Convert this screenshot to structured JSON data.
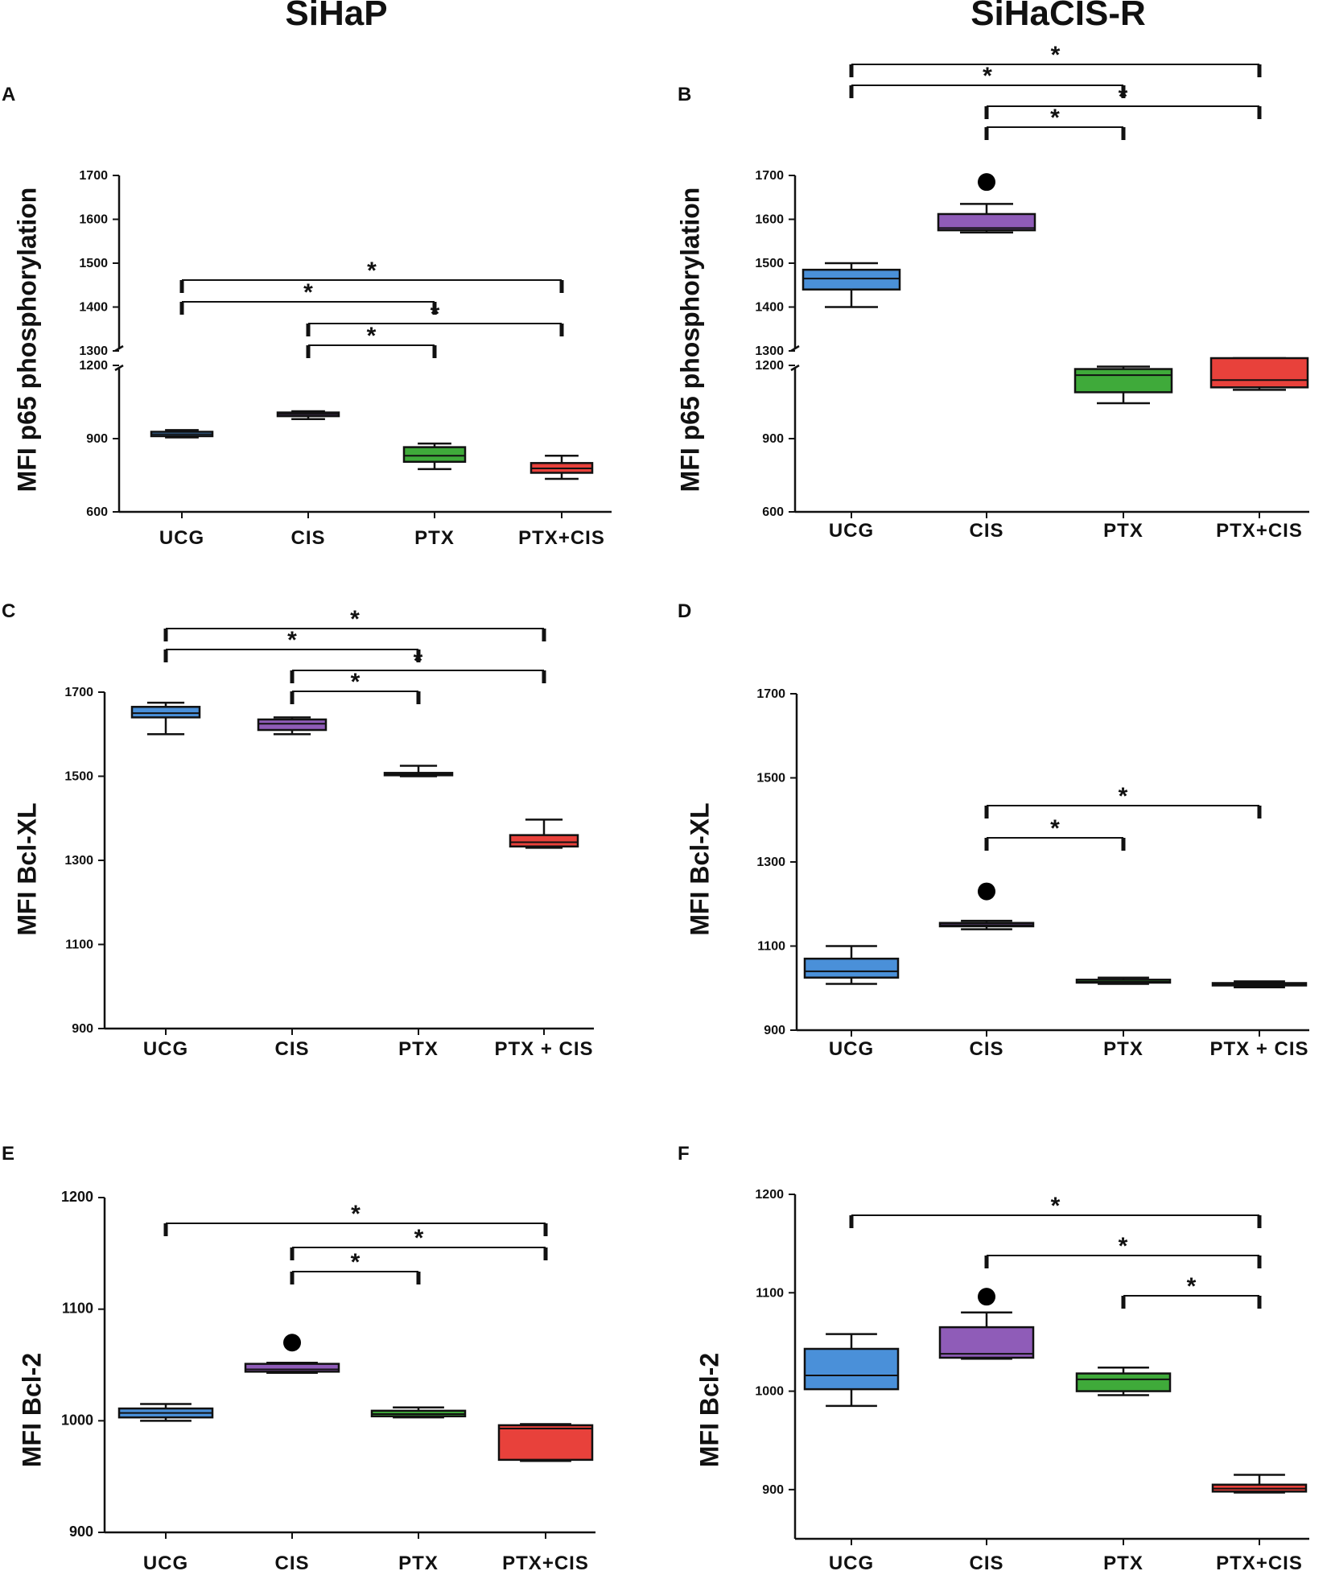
{
  "column_titles": {
    "left": "SiHaP",
    "right": "SiHaCIS-R"
  },
  "colors": {
    "UCG": "#4a90d9",
    "CIS": "#8f5cb8",
    "PTX": "#3faa3a",
    "PTX+CIS": "#e8413b",
    "axis": "#111111"
  },
  "chart_data": [
    {
      "panel": "A",
      "type": "box",
      "series": "SiHaP",
      "ylabel": "MFI p65 phosphorylation",
      "categories": [
        "UCG",
        "CIS",
        "PTX",
        "PTX+CIS"
      ],
      "ylim": [
        600,
        1700
      ],
      "axis_break": [
        1200,
        1300
      ],
      "yticks": [
        600,
        900,
        1200,
        1300,
        1400,
        1500,
        1600,
        1700
      ],
      "ytick_labels": [
        "600",
        "900",
        "1200",
        "1300",
        "1400",
        "1500",
        "1600",
        "1700"
      ],
      "boxes": [
        {
          "min": 905,
          "q1": 910,
          "median": 918,
          "q3": 928,
          "max": 935
        },
        {
          "min": 980,
          "q1": 992,
          "median": 1000,
          "q3": 1007,
          "max": 1012
        },
        {
          "min": 775,
          "q1": 805,
          "median": 830,
          "q3": 865,
          "max": 880
        },
        {
          "min": 735,
          "q1": 760,
          "median": 778,
          "q3": 800,
          "max": 830
        }
      ],
      "outliers": [],
      "brackets": [
        {
          "from": "UCG",
          "to": "PTX+CIS",
          "label": "*"
        },
        {
          "from": "UCG",
          "to": "PTX",
          "label": "*"
        },
        {
          "from": "CIS",
          "to": "PTX+CIS",
          "label": "*"
        },
        {
          "from": "CIS",
          "to": "PTX",
          "label": "*"
        }
      ]
    },
    {
      "panel": "B",
      "type": "box",
      "series": "SiHaCIS-R",
      "ylabel": "MFI p65 phosphorylation",
      "categories": [
        "UCG",
        "CIS",
        "PTX",
        "PTX+CIS"
      ],
      "ylim": [
        600,
        1700
      ],
      "axis_break": [
        1200,
        1300
      ],
      "yticks": [
        600,
        900,
        1200,
        1300,
        1400,
        1500,
        1600,
        1700
      ],
      "ytick_labels": [
        "600",
        "900",
        "1200",
        "1300",
        "1400",
        "1500",
        "1600",
        "1700"
      ],
      "boxes": [
        {
          "min": 1400,
          "q1": 1440,
          "median": 1465,
          "q3": 1485,
          "max": 1500
        },
        {
          "min": 1570,
          "q1": 1575,
          "median": 1580,
          "q3": 1612,
          "max": 1635
        },
        {
          "min": 1045,
          "q1": 1090,
          "median": 1160,
          "q3": 1185,
          "max": 1195
        },
        {
          "min": 1100,
          "q1": 1110,
          "median": 1140,
          "q3": 1205,
          "max": 1260
        }
      ],
      "outliers": [
        {
          "category": "CIS",
          "value": 1685
        }
      ],
      "brackets": [
        {
          "from": "UCG",
          "to": "PTX+CIS",
          "label": "*"
        },
        {
          "from": "UCG",
          "to": "PTX",
          "label": "*"
        },
        {
          "from": "CIS",
          "to": "PTX+CIS",
          "label": "*"
        },
        {
          "from": "CIS",
          "to": "PTX",
          "label": "*"
        }
      ]
    },
    {
      "panel": "C",
      "type": "box",
      "series": "SiHaP",
      "ylabel": "MFI Bcl-XL",
      "categories": [
        "UCG",
        "CIS",
        "PTX",
        "PTX + CIS"
      ],
      "ylim": [
        900,
        1700
      ],
      "axis_break": null,
      "yticks": [
        900,
        1100,
        1300,
        1500,
        1700
      ],
      "ytick_labels": [
        "900",
        "1100",
        "1300",
        "1500",
        "1700"
      ],
      "boxes": [
        {
          "min": 1600,
          "q1": 1640,
          "median": 1650,
          "q3": 1665,
          "max": 1675
        },
        {
          "min": 1600,
          "q1": 1610,
          "median": 1625,
          "q3": 1635,
          "max": 1640
        },
        {
          "min": 1500,
          "q1": 1503,
          "median": 1505,
          "q3": 1508,
          "max": 1525
        },
        {
          "min": 1330,
          "q1": 1333,
          "median": 1343,
          "q3": 1360,
          "max": 1397
        }
      ],
      "outliers": [],
      "brackets": [
        {
          "from": "UCG",
          "to": "PTX + CIS",
          "label": "*"
        },
        {
          "from": "UCG",
          "to": "PTX",
          "label": "*"
        },
        {
          "from": "CIS",
          "to": "PTX + CIS",
          "label": "*"
        },
        {
          "from": "CIS",
          "to": "PTX",
          "label": "*"
        }
      ]
    },
    {
      "panel": "D",
      "type": "box",
      "series": "SiHaCIS-R",
      "ylabel": "MFI Bcl-XL",
      "categories": [
        "UCG",
        "CIS",
        "PTX",
        "PTX + CIS"
      ],
      "ylim": [
        900,
        1700
      ],
      "axis_break": null,
      "yticks": [
        900,
        1100,
        1300,
        1500,
        1700
      ],
      "ytick_labels": [
        "900",
        "1100",
        "1300",
        "1500",
        "1700"
      ],
      "boxes": [
        {
          "min": 1010,
          "q1": 1025,
          "median": 1040,
          "q3": 1070,
          "max": 1100
        },
        {
          "min": 1140,
          "q1": 1147,
          "median": 1150,
          "q3": 1155,
          "max": 1160
        },
        {
          "min": 1010,
          "q1": 1013,
          "median": 1015,
          "q3": 1020,
          "max": 1025
        },
        {
          "min": 1002,
          "q1": 1007,
          "median": 1010,
          "q3": 1012,
          "max": 1016
        }
      ],
      "outliers": [
        {
          "category": "CIS",
          "value": 1230
        }
      ],
      "brackets": [
        {
          "from": "CIS",
          "to": "PTX + CIS",
          "label": "*"
        },
        {
          "from": "CIS",
          "to": "PTX",
          "label": "*"
        }
      ]
    },
    {
      "panel": "E",
      "type": "box",
      "series": "SiHaP",
      "ylabel": "MFI Bcl-2",
      "categories": [
        "UCG",
        "CIS",
        "PTX",
        "PTX+CIS"
      ],
      "ylim": [
        900,
        1200
      ],
      "axis_break": null,
      "yticks": [
        900,
        1000,
        1100,
        1200
      ],
      "ytick_labels": [
        "900",
        "1000",
        "1100",
        "1200"
      ],
      "boxes": [
        {
          "min": 1000,
          "q1": 1003,
          "median": 1007,
          "q3": 1011,
          "max": 1015
        },
        {
          "min": 1043,
          "q1": 1044,
          "median": 1046,
          "q3": 1051,
          "max": 1052
        },
        {
          "min": 1003,
          "q1": 1004,
          "median": 1006,
          "q3": 1009,
          "max": 1012
        },
        {
          "min": 964,
          "q1": 965,
          "median": 993,
          "q3": 996,
          "max": 997
        }
      ],
      "outliers": [
        {
          "category": "CIS",
          "value": 1070
        }
      ],
      "brackets": [
        {
          "from": "UCG",
          "to": "PTX+CIS",
          "label": "*"
        },
        {
          "from": "CIS",
          "to": "PTX+CIS",
          "label": "*"
        },
        {
          "from": "CIS",
          "to": "PTX",
          "label": "*"
        }
      ]
    },
    {
      "panel": "F",
      "type": "box",
      "series": "SiHaCIS-R",
      "ylabel": "MFI Bcl-2",
      "categories": [
        "UCG",
        "CIS",
        "PTX",
        "PTX+CIS"
      ],
      "ylim": [
        850,
        1200
      ],
      "axis_break": null,
      "yticks": [
        900,
        1000,
        1100,
        1200
      ],
      "ytick_labels": [
        "900",
        "1000",
        "1100",
        "1200"
      ],
      "boxes": [
        {
          "min": 985,
          "q1": 1002,
          "median": 1016,
          "q3": 1043,
          "max": 1058
        },
        {
          "min": 1033,
          "q1": 1034,
          "median": 1038,
          "q3": 1065,
          "max": 1080
        },
        {
          "min": 996,
          "q1": 1000,
          "median": 1012,
          "q3": 1018,
          "max": 1024
        },
        {
          "min": 897,
          "q1": 898,
          "median": 901,
          "q3": 905,
          "max": 915
        }
      ],
      "outliers": [
        {
          "category": "CIS",
          "value": 1096
        }
      ],
      "brackets": [
        {
          "from": "UCG",
          "to": "PTX+CIS",
          "label": "*"
        },
        {
          "from": "CIS",
          "to": "PTX+CIS",
          "label": "*"
        },
        {
          "from": "PTX",
          "to": "PTX+CIS",
          "label": "*"
        }
      ]
    }
  ]
}
